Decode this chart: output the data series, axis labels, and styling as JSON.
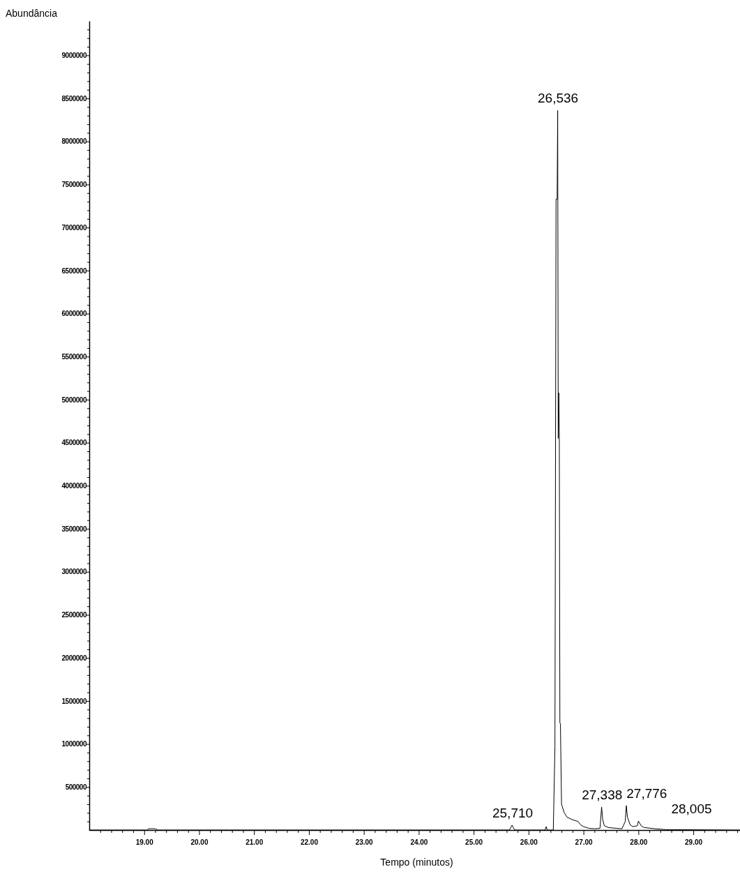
{
  "chart_data": {
    "type": "line",
    "xlabel": "Tempo (minutos)",
    "ylabel": "Abundância",
    "x": [
      18.0,
      19.05,
      19.08,
      19.2,
      19.25,
      25.65,
      25.7,
      25.72,
      25.75,
      26.3,
      26.32,
      26.34,
      26.45,
      26.48,
      26.5,
      26.52,
      26.53,
      26.54,
      26.55,
      26.56,
      26.57,
      26.58,
      26.6,
      26.65,
      26.7,
      26.8,
      26.9,
      26.95,
      27.0,
      27.1,
      27.2,
      27.3,
      27.33,
      27.35,
      27.38,
      27.45,
      27.6,
      27.7,
      27.76,
      27.78,
      27.8,
      27.85,
      27.9,
      27.98,
      28.0,
      28.05,
      28.1,
      28.3,
      28.5,
      29.85
    ],
    "series": [
      {
        "color": "#000000",
        "values": [
          0,
          0,
          15000,
          15000,
          0,
          0,
          57000,
          30000,
          0,
          0,
          40000,
          0,
          0,
          970000,
          7330000,
          7330000,
          8360000,
          4550000,
          5080000,
          4550000,
          1250000,
          1230000,
          300000,
          200000,
          150000,
          120000,
          100000,
          60000,
          40000,
          20000,
          15000,
          20000,
          268000,
          120000,
          50000,
          30000,
          20000,
          15000,
          100000,
          284000,
          150000,
          60000,
          40000,
          50000,
          105000,
          50000,
          30000,
          15000,
          5000,
          0
        ]
      }
    ],
    "xlim": [
      18.0,
      29.85
    ],
    "xticks": [
      {
        "value": 18.2,
        "label": null
      },
      {
        "value": 18.4,
        "label": null
      },
      {
        "value": 18.6,
        "label": null
      },
      {
        "value": 18.8,
        "label": null
      },
      {
        "value": 19,
        "label": "19.00"
      },
      {
        "value": 19.2,
        "label": null
      },
      {
        "value": 19.4,
        "label": null
      },
      {
        "value": 19.6,
        "label": null
      },
      {
        "value": 19.8,
        "label": null
      },
      {
        "value": 20,
        "label": "20.00"
      },
      {
        "value": 20.2,
        "label": null
      },
      {
        "value": 20.4,
        "label": null
      },
      {
        "value": 20.6,
        "label": null
      },
      {
        "value": 20.8,
        "label": null
      },
      {
        "value": 21,
        "label": "21.00"
      },
      {
        "value": 21.2,
        "label": null
      },
      {
        "value": 21.4,
        "label": null
      },
      {
        "value": 21.6,
        "label": null
      },
      {
        "value": 21.8,
        "label": null
      },
      {
        "value": 22,
        "label": "22.00"
      },
      {
        "value": 22.2,
        "label": null
      },
      {
        "value": 22.4,
        "label": null
      },
      {
        "value": 22.6,
        "label": null
      },
      {
        "value": 22.8,
        "label": null
      },
      {
        "value": 23,
        "label": "23.00"
      },
      {
        "value": 23.2,
        "label": null
      },
      {
        "value": 23.4,
        "label": null
      },
      {
        "value": 23.6,
        "label": null
      },
      {
        "value": 23.8,
        "label": null
      },
      {
        "value": 24,
        "label": "24.00"
      },
      {
        "value": 24.2,
        "label": null
      },
      {
        "value": 24.4,
        "label": null
      },
      {
        "value": 24.6,
        "label": null
      },
      {
        "value": 24.8,
        "label": null
      },
      {
        "value": 25,
        "label": "25.00"
      },
      {
        "value": 25.2,
        "label": null
      },
      {
        "value": 25.4,
        "label": null
      },
      {
        "value": 25.6,
        "label": null
      },
      {
        "value": 25.8,
        "label": null
      },
      {
        "value": 26,
        "label": "26.00"
      },
      {
        "value": 26.2,
        "label": null
      },
      {
        "value": 26.4,
        "label": null
      },
      {
        "value": 26.6,
        "label": null
      },
      {
        "value": 26.8,
        "label": null
      },
      {
        "value": 27,
        "label": "27.00"
      },
      {
        "value": 27.2,
        "label": null
      },
      {
        "value": 27.4,
        "label": null
      },
      {
        "value": 27.6,
        "label": null
      },
      {
        "value": 27.8,
        "label": null
      },
      {
        "value": 28,
        "label": "28.00"
      },
      {
        "value": 28.2,
        "label": null
      },
      {
        "value": 28.4,
        "label": null
      },
      {
        "value": 28.6,
        "label": null
      },
      {
        "value": 28.8,
        "label": null
      },
      {
        "value": 29,
        "label": "29.00"
      },
      {
        "value": 29.2,
        "label": null
      },
      {
        "value": 29.4,
        "label": null
      },
      {
        "value": 29.6,
        "label": null
      },
      {
        "value": 29.8,
        "label": null
      }
    ],
    "ylim": [
      0,
      9400000
    ],
    "yticks": [
      {
        "value": 100000,
        "label": null
      },
      {
        "value": 200000,
        "label": null
      },
      {
        "value": 300000,
        "label": null
      },
      {
        "value": 400000,
        "label": null
      },
      500000,
      {
        "value": 600000,
        "label": null
      },
      {
        "value": 700000,
        "label": null
      },
      {
        "value": 800000,
        "label": null
      },
      {
        "value": 900000,
        "label": null
      },
      1000000,
      {
        "value": 1100000,
        "label": null
      },
      {
        "value": 1200000,
        "label": null
      },
      {
        "value": 1300000,
        "label": null
      },
      {
        "value": 1400000,
        "label": null
      },
      1500000,
      {
        "value": 1600000,
        "label": null
      },
      {
        "value": 1700000,
        "label": null
      },
      {
        "value": 1800000,
        "label": null
      },
      {
        "value": 1900000,
        "label": null
      },
      2000000,
      {
        "value": 2100000,
        "label": null
      },
      {
        "value": 2200000,
        "label": null
      },
      {
        "value": 2300000,
        "label": null
      },
      {
        "value": 2400000,
        "label": null
      },
      2500000,
      {
        "value": 2600000,
        "label": null
      },
      {
        "value": 2700000,
        "label": null
      },
      {
        "value": 2800000,
        "label": null
      },
      {
        "value": 2900000,
        "label": null
      },
      3000000,
      {
        "value": 3100000,
        "label": null
      },
      {
        "value": 3200000,
        "label": null
      },
      {
        "value": 3300000,
        "label": null
      },
      {
        "value": 3400000,
        "label": null
      },
      3500000,
      {
        "value": 3600000,
        "label": null
      },
      {
        "value": 3700000,
        "label": null
      },
      {
        "value": 3800000,
        "label": null
      },
      {
        "value": 3900000,
        "label": null
      },
      4000000,
      {
        "value": 4100000,
        "label": null
      },
      {
        "value": 4200000,
        "label": null
      },
      {
        "value": 4300000,
        "label": null
      },
      {
        "value": 4400000,
        "label": null
      },
      4500000,
      {
        "value": 4600000,
        "label": null
      },
      {
        "value": 4700000,
        "label": null
      },
      {
        "value": 4800000,
        "label": null
      },
      {
        "value": 4900000,
        "label": null
      },
      5000000,
      {
        "value": 5100000,
        "label": null
      },
      {
        "value": 5200000,
        "label": null
      },
      {
        "value": 5300000,
        "label": null
      },
      {
        "value": 5400000,
        "label": null
      },
      5500000,
      {
        "value": 5600000,
        "label": null
      },
      {
        "value": 5700000,
        "label": null
      },
      {
        "value": 5800000,
        "label": null
      },
      {
        "value": 5900000,
        "label": null
      },
      6000000,
      {
        "value": 6100000,
        "label": null
      },
      {
        "value": 6200000,
        "label": null
      },
      {
        "value": 6300000,
        "label": null
      },
      {
        "value": 6400000,
        "label": null
      },
      6500000,
      {
        "value": 6600000,
        "label": null
      },
      {
        "value": 6700000,
        "label": null
      },
      {
        "value": 6800000,
        "label": null
      },
      {
        "value": 6900000,
        "label": null
      },
      7000000,
      {
        "value": 7100000,
        "label": null
      },
      {
        "value": 7200000,
        "label": null
      },
      {
        "value": 7300000,
        "label": null
      },
      {
        "value": 7400000,
        "label": null
      },
      7500000,
      {
        "value": 7600000,
        "label": null
      },
      {
        "value": 7700000,
        "label": null
      },
      {
        "value": 7800000,
        "label": null
      },
      {
        "value": 7900000,
        "label": null
      },
      8000000,
      {
        "value": 8100000,
        "label": null
      },
      {
        "value": 8200000,
        "label": null
      },
      {
        "value": 8300000,
        "label": null
      },
      {
        "value": 8400000,
        "label": null
      },
      8500000,
      {
        "value": 8600000,
        "label": null
      },
      {
        "value": 8700000,
        "label": null
      },
      {
        "value": 8800000,
        "label": null
      },
      {
        "value": 8900000,
        "label": null
      },
      9000000,
      {
        "value": 9100000,
        "label": null
      },
      {
        "value": 9200000,
        "label": null
      },
      {
        "value": 9300000,
        "label": null
      }
    ],
    "annotations": [
      {
        "text": "25,710",
        "x": 25.71,
        "y": 57000
      },
      {
        "text": "26,536",
        "x": 26.536,
        "y": 8360000
      },
      {
        "text": "27,338",
        "x": 27.338,
        "y": 268000
      },
      {
        "text": "27,776",
        "x": 27.776,
        "y": 284000
      },
      {
        "text": "28,005",
        "x": 28.005,
        "y": 105000
      }
    ]
  }
}
